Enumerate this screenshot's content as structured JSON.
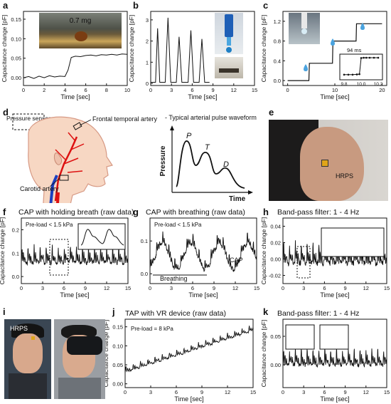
{
  "figure": {
    "panels": {
      "a": {
        "label": "a",
        "xlabel": "Time [sec]",
        "ylabel": "Capacitance change [pF]",
        "inset_text": "0.7 mg"
      },
      "b": {
        "label": "b",
        "xlabel": "Time [sec]",
        "ylabel": "Capacitance change [pF]"
      },
      "c": {
        "label": "c",
        "xlabel": "Time [sec]",
        "ylabel": "Capacitance change [pF]",
        "inset_annotation": "94 ms"
      },
      "d": {
        "label": "d",
        "pressure_sensor": "Pressure sensor",
        "frontal_artery": "Frontal temporal artery",
        "carotid": "Carotid artery",
        "waveform_title": "- Typical arterial pulse waveform",
        "ylabel": "Pressure",
        "xlabel": "Time",
        "peaks": [
          "P",
          "T",
          "D"
        ]
      },
      "e": {
        "label": "e",
        "hrps": "HRPS"
      },
      "f": {
        "label": "f",
        "title": "CAP with holding breath (raw data)",
        "preload": "Pre-load < 1.5 kPa",
        "xlabel": "Time [sec]",
        "ylabel": "Capacitance change [pF]"
      },
      "g": {
        "label": "g",
        "title": "CAP with breathing (raw data)",
        "preload": "Pre-load < 1.5 kPa",
        "breathing": "Breathing",
        "cap": "CAP",
        "xlabel": "Time [sec]"
      },
      "h": {
        "label": "h",
        "title": "Band-pass filter: 1 - 4 Hz",
        "xlabel": "Time [sec]",
        "ylabel": "Capacitance change [pF]"
      },
      "i": {
        "label": "i",
        "hrps": "HRPS"
      },
      "j": {
        "label": "j",
        "title": "TAP with VR device (raw data)",
        "preload": "Pre-load = 8 kPa",
        "xlabel": "Time [sec]",
        "ylabel": "Capacitance change [pF]"
      },
      "k": {
        "label": "k",
        "title": "Band-pass filter: 1 - 4 Hz",
        "xlabel": "Time [sec]",
        "ylabel": "Capacitance change [pF]"
      }
    }
  },
  "chart_data": [
    {
      "panel": "a",
      "type": "line",
      "x_ticks": [
        0,
        2,
        4,
        6,
        8,
        10
      ],
      "y_ticks": [
        "0.00",
        "0.05",
        "0.10",
        "0.15"
      ],
      "xlim": [
        0,
        10
      ],
      "ylim": [
        -0.02,
        0.17
      ],
      "series": [
        {
          "x": [
            0,
            0.5,
            1,
            1.5,
            2,
            2.5,
            3,
            3.5,
            4,
            4.3,
            4.6,
            5,
            5.5,
            6,
            6.5,
            7,
            7.5,
            8,
            8.5,
            9,
            9.5,
            10
          ],
          "y": [
            0.0,
            0.003,
            -0.002,
            0.004,
            0.0,
            0.005,
            0.002,
            0.004,
            0.003,
            0.02,
            0.052,
            0.055,
            0.054,
            0.057,
            0.058,
            0.056,
            0.059,
            0.058,
            0.06,
            0.058,
            0.061,
            0.06
          ]
        }
      ]
    },
    {
      "panel": "b",
      "type": "line",
      "x_ticks": [
        0,
        3,
        6,
        9,
        12,
        15
      ],
      "y_ticks": [
        "0",
        "1",
        "2",
        "3"
      ],
      "xlim": [
        0,
        15
      ],
      "ylim": [
        -0.1,
        3.4
      ],
      "series": [
        {
          "x": [
            0,
            0.7,
            1.0,
            1.3,
            2.1,
            2.5,
            2.9,
            3.7,
            4.1,
            4.5,
            5.4,
            5.8,
            6.2,
            7.0,
            7.4,
            7.8,
            8.5
          ],
          "y": [
            0.05,
            0.05,
            2.6,
            0.05,
            0.05,
            3.1,
            0.05,
            0.05,
            2.2,
            0.05,
            0.05,
            2.5,
            0.05,
            0.05,
            2.1,
            0.05,
            0.05
          ]
        }
      ]
    },
    {
      "panel": "c",
      "type": "line",
      "x_ticks": [
        0,
        10,
        20
      ],
      "y_ticks": [
        "0.0",
        "0.4",
        "0.8",
        "1.2"
      ],
      "xlim": [
        -1,
        21
      ],
      "ylim": [
        -0.1,
        1.4
      ],
      "series": [
        {
          "x": [
            0,
            2,
            4.5,
            4.6,
            9.5,
            9.6,
            14.5,
            14.6,
            20
          ],
          "y": [
            0.0,
            0.0,
            0.0,
            0.35,
            0.35,
            0.8,
            0.8,
            1.15,
            1.15
          ]
        }
      ]
    },
    {
      "panel": "c-inset",
      "type": "line",
      "x_ticks": [
        9.8,
        10.0,
        10.2
      ],
      "xlim": [
        9.75,
        10.25
      ],
      "ylim": [
        0,
        1
      ],
      "series": [
        {
          "x": [
            9.8,
            9.85,
            9.9,
            9.95,
            9.98,
            10.0,
            10.03,
            10.06,
            10.1,
            10.15,
            10.2
          ],
          "y": [
            0.2,
            0.2,
            0.2,
            0.21,
            0.22,
            0.85,
            0.86,
            0.86,
            0.86,
            0.86,
            0.86
          ]
        }
      ]
    },
    {
      "panel": "f",
      "type": "line",
      "x_ticks": [
        0,
        3,
        6,
        9,
        12,
        15
      ],
      "y_ticks": [
        "0.0",
        "0.1",
        "0.2"
      ],
      "xlim": [
        0,
        15
      ],
      "ylim": [
        -0.03,
        0.25
      ],
      "series": [
        {
          "name": "raw",
          "y_generator": "pulse",
          "period": 0.85,
          "base": 0.06,
          "amp": 0.07
        }
      ]
    },
    {
      "panel": "g",
      "type": "line",
      "x_ticks": [
        0,
        3,
        6,
        9,
        12,
        15
      ],
      "y_ticks": [
        "0.0",
        "0.1"
      ],
      "xlim": [
        0,
        15
      ],
      "ylim": [
        -0.03,
        0.17
      ],
      "series": [
        {
          "name": "raw",
          "y_generator": "pulse+breath",
          "period": 0.85,
          "base": 0.05,
          "amp": 0.035
        }
      ]
    },
    {
      "panel": "h",
      "type": "line",
      "x_ticks": [
        0,
        3,
        6,
        9,
        12,
        15
      ],
      "y_ticks": [
        "-0.02",
        "0.00",
        "0.02",
        "0.04"
      ],
      "xlim": [
        0,
        15
      ],
      "ylim": [
        -0.03,
        0.05
      ],
      "series": [
        {
          "name": "filtered",
          "y_generator": "pulse",
          "period": 0.85,
          "base": -0.005,
          "amp": 0.025
        }
      ]
    },
    {
      "panel": "j",
      "type": "line",
      "x_ticks": [
        0,
        3,
        6,
        9,
        12,
        15
      ],
      "y_ticks": [
        "0.00",
        "0.05",
        "0.10",
        "0.15"
      ],
      "xlim": [
        0,
        15
      ],
      "ylim": [
        -0.01,
        0.17
      ],
      "series": [
        {
          "name": "raw",
          "y_generator": "pulse+drift",
          "period": 0.85,
          "base": 0.03,
          "amp": 0.015
        }
      ]
    },
    {
      "panel": "k",
      "type": "line",
      "x_ticks": [
        0,
        3,
        6,
        9,
        12,
        15
      ],
      "y_ticks": [
        "0.00",
        "0.05"
      ],
      "xlim": [
        0,
        15
      ],
      "ylim": [
        -0.04,
        0.08
      ],
      "series": [
        {
          "name": "filtered",
          "y_generator": "pulse",
          "period": 0.85,
          "base": 0.0,
          "amp": 0.028
        }
      ]
    }
  ]
}
